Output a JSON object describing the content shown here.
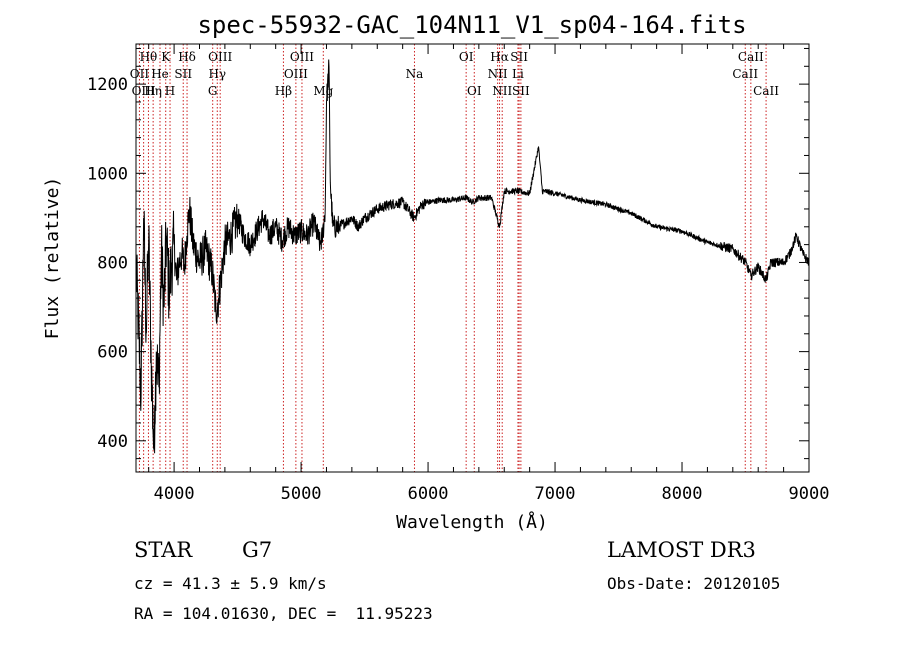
{
  "chart_data": {
    "type": "line",
    "title": "spec-55932-GAC_104N11_V1_sp04-164.fits",
    "xlabel": "Wavelength (Å)",
    "ylabel": "Flux (relative)",
    "xlim": [
      3700,
      9000
    ],
    "ylim": [
      330,
      1290
    ],
    "xticks": [
      4000,
      5000,
      6000,
      7000,
      8000,
      9000
    ],
    "yticks": [
      400,
      600,
      800,
      1000,
      1200
    ],
    "grid": false,
    "series": [
      {
        "name": "flux",
        "x": [
          3700,
          3740,
          3760,
          3780,
          3800,
          3820,
          3840,
          3860,
          3880,
          3900,
          3920,
          3940,
          3960,
          3980,
          4000,
          4020,
          4040,
          4060,
          4080,
          4100,
          4120,
          4150,
          4200,
          4250,
          4300,
          4330,
          4350,
          4400,
          4450,
          4500,
          4550,
          4600,
          4650,
          4700,
          4750,
          4800,
          4850,
          4900,
          4950,
          5000,
          5050,
          5100,
          5150,
          5170,
          5190,
          5200,
          5220,
          5230,
          5250,
          5300,
          5350,
          5400,
          5450,
          5500,
          5600,
          5700,
          5800,
          5890,
          5950,
          6000,
          6100,
          6200,
          6300,
          6350,
          6400,
          6500,
          6563,
          6600,
          6700,
          6800,
          6870,
          6900,
          7000,
          7200,
          7400,
          7600,
          7800,
          8000,
          8200,
          8400,
          8500,
          8542,
          8600,
          8662,
          8700,
          8800,
          8850,
          8900,
          8950,
          9000
        ],
        "values": [
          800,
          500,
          900,
          650,
          850,
          580,
          380,
          600,
          520,
          820,
          700,
          860,
          730,
          800,
          840,
          760,
          800,
          820,
          790,
          860,
          920,
          840,
          800,
          830,
          780,
          690,
          720,
          840,
          860,
          900,
          860,
          840,
          870,
          900,
          860,
          880,
          850,
          880,
          860,
          870,
          860,
          890,
          840,
          860,
          920,
          1160,
          1240,
          980,
          880,
          880,
          890,
          900,
          880,
          900,
          920,
          930,
          935,
          900,
          930,
          935,
          940,
          940,
          945,
          935,
          945,
          945,
          880,
          960,
          960,
          955,
          1060,
          960,
          955,
          940,
          930,
          910,
          880,
          870,
          845,
          830,
          800,
          770,
          790,
          760,
          800,
          800,
          820,
          860,
          820,
          800
        ]
      }
    ],
    "lines": [
      {
        "label": "Hθ",
        "x": 3798,
        "row": 0
      },
      {
        "label": "OII",
        "x": 3727,
        "row": 1
      },
      {
        "label": "OIII",
        "x": 3760,
        "row": 2
      },
      {
        "label": "K",
        "x": 3934,
        "row": 0
      },
      {
        "label": "He",
        "x": 3889,
        "row": 1
      },
      {
        "label": "Hη",
        "x": 3835,
        "row": 2
      },
      {
        "label": "SII",
        "x": 4072,
        "row": 1
      },
      {
        "label": "H",
        "x": 3968,
        "row": 2
      },
      {
        "label": "Hδ",
        "x": 4102,
        "row": 0
      },
      {
        "label": "OIII",
        "x": 4363,
        "row": 0
      },
      {
        "label": "Hγ",
        "x": 4340,
        "row": 1
      },
      {
        "label": "G",
        "x": 4304,
        "row": 2
      },
      {
        "label": "OIII",
        "x": 5007,
        "row": 0
      },
      {
        "label": "OIII",
        "x": 4959,
        "row": 1
      },
      {
        "label": "Hβ",
        "x": 4861,
        "row": 2
      },
      {
        "label": "Mg",
        "x": 5175,
        "row": 2
      },
      {
        "label": "Na",
        "x": 5893,
        "row": 1
      },
      {
        "label": "OI",
        "x": 6300,
        "row": 0
      },
      {
        "label": "OI",
        "x": 6364,
        "row": 2
      },
      {
        "label": "Hα",
        "x": 6563,
        "row": 0
      },
      {
        "label": "NII",
        "x": 6548,
        "row": 1
      },
      {
        "label": "NII",
        "x": 6584,
        "row": 2
      },
      {
        "label": "SII",
        "x": 6717,
        "row": 0
      },
      {
        "label": "Li",
        "x": 6708,
        "row": 1
      },
      {
        "label": "SII",
        "x": 6731,
        "row": 2
      },
      {
        "label": "CaII",
        "x": 8542,
        "row": 0
      },
      {
        "label": "CaII",
        "x": 8498,
        "row": 1
      },
      {
        "label": "CaII",
        "x": 8662,
        "row": 2
      }
    ]
  },
  "info": {
    "object_type": "STAR",
    "subclass": "G7",
    "survey": "LAMOST DR3",
    "redshift": "cz = 41.3 ± 5.9 km/s",
    "obs_date": "Obs-Date: 20120105",
    "coords": "RA = 104.01630, DEC =  11.95223"
  }
}
